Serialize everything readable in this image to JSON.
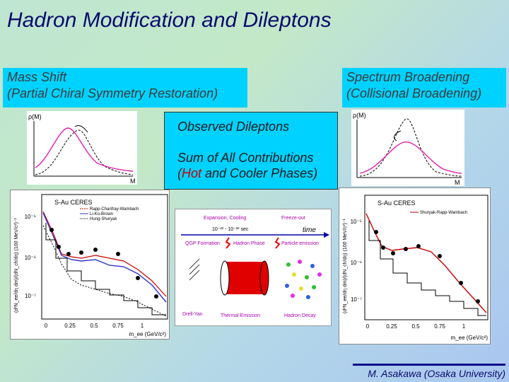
{
  "title": "Hadron Modification and Dileptons",
  "mass_shift": {
    "line1": "Mass Shift",
    "line2": "(Partial Chiral Symmetry Restoration)"
  },
  "spectrum": {
    "line1": "Spectrum Broadening",
    "line2": "(Collisional Broadening)"
  },
  "observed": {
    "line1": "Observed Dileptons",
    "line2a": "Sum of All Contributions",
    "line3a": "(",
    "hot": "Hot",
    "line3b": " and Cooler Phases)"
  },
  "rho_left": {
    "ylabel": "ρ(M)",
    "xlabel": "M"
  },
  "rho_right": {
    "ylabel": "ρ(M)",
    "xlabel": "M"
  },
  "plot_left": {
    "experiment": "S-Au  CERES",
    "legend": [
      "Rapp-Chanfray-Wambach",
      "Li-Ko-Brown",
      "Hung-Shuryak"
    ],
    "ylabel": "(d²N_ee/dη dm)/(dN_ch/dη) (100 MeV/c²)⁻¹",
    "xlabel": "m_ee (GeV/c²)",
    "x_ticks": [
      "0",
      "0.25",
      "0.5",
      "0.75",
      "1"
    ],
    "y_ticks": [
      "10⁻⁵",
      "10⁻⁶",
      "10⁻⁷"
    ]
  },
  "plot_right": {
    "experiment": "S-Au  CERES",
    "legend": [
      "Shuryak-Rapp-Wambach"
    ],
    "ylabel": "(d²N_ee/dη dm)/(dN_ch/dη) (100 MeV/c²)⁻¹",
    "xlabel": "m_ee (GeV/c²)",
    "x_ticks": [
      "0",
      "0.25",
      "0.5",
      "0.75",
      "1"
    ],
    "y_ticks": [
      "10⁻⁵",
      "10⁻⁶",
      "10⁻⁷"
    ]
  },
  "diagram": {
    "expansion": "Expansion, Cooling",
    "freezeout": "Freeze-out",
    "time_ticks": "10⁻²³ - 10⁻²² sec",
    "time": "time",
    "qgp": "QGP Formation",
    "hadron_phase": "Hadron Phase",
    "particle_emission": "Particle emission",
    "drell_yan": "Drell-Yan",
    "thermal": "Thermal Emission",
    "hadron_decay": "Hadron Decay"
  },
  "footer": "M. Asakawa (Osaka University)"
}
